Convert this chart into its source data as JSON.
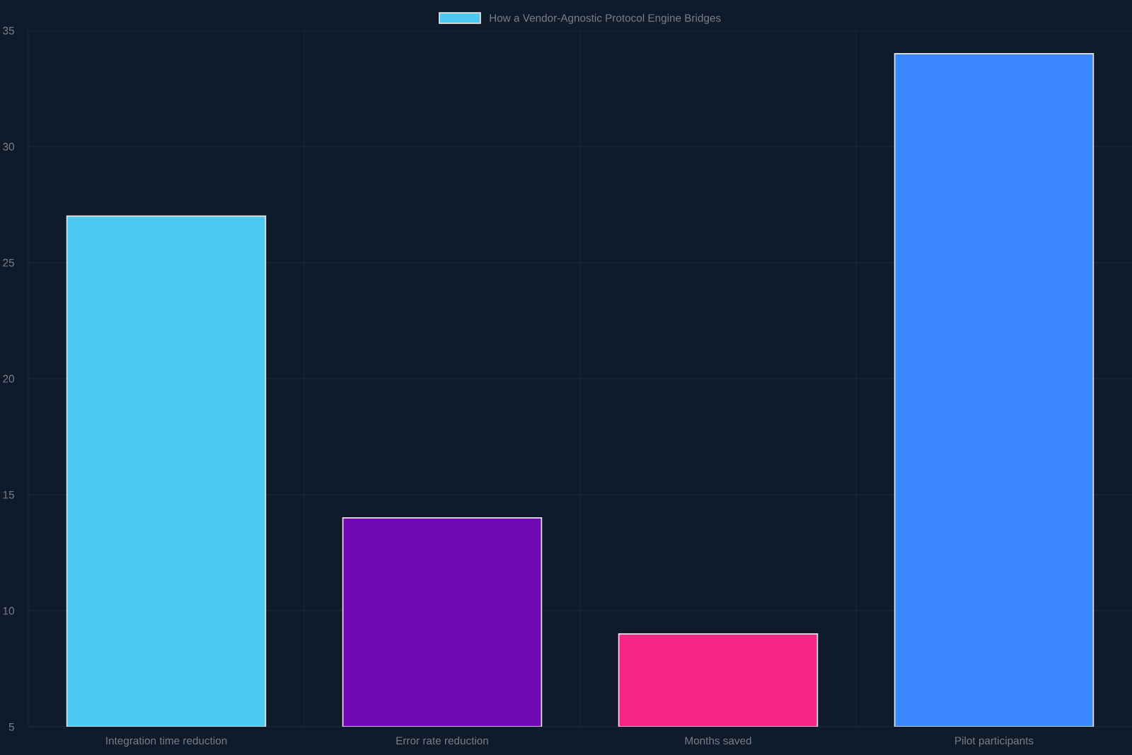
{
  "chart_data": {
    "type": "bar",
    "categories": [
      "Integration time reduction",
      "Error rate reduction",
      "Months saved",
      "Pilot participants"
    ],
    "series": [
      {
        "name": "How a Vendor-Agnostic Protocol Engine Bridges",
        "colors": [
          "#4cc9f0",
          "#7209b7",
          "#f72585",
          "#3a86ff"
        ],
        "values": [
          27,
          14,
          9,
          34
        ]
      }
    ],
    "ylim": [
      5,
      35
    ],
    "yticks": [
      5,
      10,
      15,
      20,
      25,
      30,
      35
    ],
    "grid": true,
    "legend": "top"
  }
}
